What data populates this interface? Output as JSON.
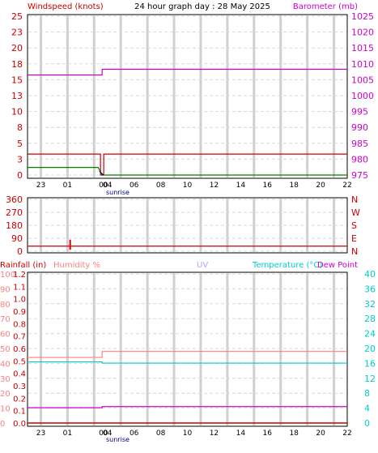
{
  "title": "24 hour graph day : 28 May 2025",
  "top_panel": {
    "left_label": "Windspeed (knots)",
    "right_label": "Barometer (mb)",
    "left_ticks": [
      "25",
      "23",
      "20",
      "18",
      "15",
      "13",
      "10",
      "8",
      "5",
      "3",
      "0"
    ],
    "right_ticks": [
      "1025",
      "1020",
      "1015",
      "1010",
      "1005",
      "1000",
      "995",
      "990",
      "985",
      "980",
      "975"
    ]
  },
  "direction_panel": {
    "left_ticks": [
      "360",
      "270",
      "180",
      "90",
      "0"
    ],
    "right_ticks": [
      "N",
      "W",
      "S",
      "E",
      "N"
    ]
  },
  "bottom_panel": {
    "rainfall_label": "Rainfall (in)",
    "humidity_label": "Humidity %",
    "uv_label": "UV",
    "temperature_label": "Temperature (°C)",
    "dewpoint_label": "Dew Point",
    "humidity_ticks": [
      "100",
      "90",
      "80",
      "70",
      "60",
      "50",
      "40",
      "30",
      "20",
      "10",
      "0"
    ],
    "rain_ticks": [
      "1.2",
      "1.1",
      "1.0",
      "0.9",
      "0.8",
      "0.7",
      "0.6",
      "0.5",
      "0.4",
      "0.3",
      "0.2",
      "0.1",
      "0.0"
    ],
    "temp_ticks": [
      "40",
      "36",
      "32",
      "28",
      "24",
      "20",
      "16",
      "12",
      "8",
      "4",
      "0"
    ]
  },
  "x_ticks": [
    "23",
    "01",
    "00",
    "04",
    "06",
    "08",
    "10",
    "12",
    "14",
    "16",
    "18",
    "20",
    "22"
  ],
  "sunrise_label": "sunrise",
  "colors": {
    "wind_label": "#cc0000",
    "barometer": "#cc00cc",
    "wind": "#cc0000",
    "gust": "#008000",
    "humidity": "#ff7f7f",
    "uv": "#aaaaff",
    "temperature": "#00cccc",
    "dewpoint": "#cc00cc",
    "grid": "#d8d8d8",
    "axis_text": "#cc0000"
  },
  "chart_data": [
    {
      "type": "line",
      "x": [
        22,
        23,
        24,
        25,
        26,
        27,
        28,
        29,
        30,
        31,
        32,
        33,
        34,
        35,
        36,
        37,
        38,
        39,
        40,
        41,
        42,
        43,
        44,
        45,
        46
      ],
      "series": [
        {
          "axis": "left",
          "values": [
            3.3,
            3.3,
            3.3,
            3.3,
            3.3,
            3.3,
            3.3,
            3.3,
            3.3,
            3.3,
            3.3,
            3.3,
            3.3,
            3.3,
            3.3,
            3.3,
            3.3,
            3.3,
            3.3,
            3.3,
            3.3,
            3.3,
            3.3,
            3.3,
            3.3
          ]
        },
        {
          "axis": "left",
          "values": [
            1.2,
            1.2,
            1.2,
            1.2,
            0,
            0,
            0,
            0,
            0,
            0,
            0,
            0,
            0,
            0,
            0,
            0,
            0,
            0,
            0,
            0,
            0,
            0,
            0,
            0,
            0
          ]
        },
        {
          "axis": "right",
          "values": [
            1008.3,
            1008.3,
            1008.3,
            1008.3,
            1008.3,
            1008.3,
            1008.3,
            1008.3,
            1008.3,
            1008.3,
            1008.3,
            1008.3,
            1008.3,
            1008.3,
            1008.3,
            1008.3,
            1008.3,
            1008.3,
            1008.3,
            1008.3,
            1008.3,
            1008.3,
            1008.3,
            1008.3,
            1008.3
          ]
        }
      ],
      "ylim_left": [
        0,
        25
      ],
      "ylim_right": [
        975,
        1025
      ]
    },
    {
      "type": "line",
      "x": [
        22,
        46
      ],
      "series": [
        {
          "values": [
            35,
            35
          ]
        }
      ],
      "ylim": [
        0,
        360
      ]
    },
    {
      "type": "line",
      "x": [
        22,
        46
      ],
      "series": [
        {
          "axis": "humidity",
          "values": [
            44,
            48
          ]
        },
        {
          "axis": "temperature",
          "values": [
            16.4,
            16.4
          ]
        },
        {
          "axis": "dewpoint",
          "values": [
            4.1,
            4.4
          ]
        },
        {
          "axis": "rain",
          "values": [
            0.0,
            0.0
          ]
        }
      ],
      "ylim_humidity": [
        0,
        100
      ],
      "ylim_rain": [
        0,
        1.2
      ],
      "ylim_temperature": [
        0,
        40
      ]
    }
  ]
}
